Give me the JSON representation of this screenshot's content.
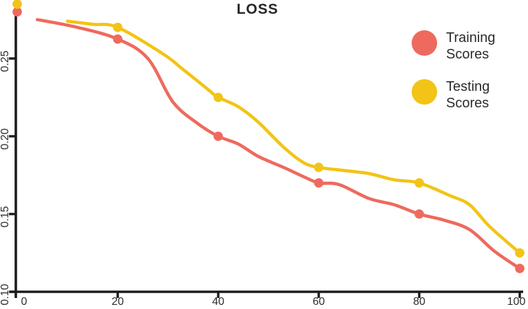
{
  "title": "LOSS",
  "colors": {
    "background": "#ffffff",
    "axis": "#1b1b1b",
    "tick_label": "#2e2e2e",
    "title": "#262626",
    "legend_text": "#2b2b2b",
    "training": "#ee6a5e",
    "testing": "#f2c417"
  },
  "chart_data": {
    "type": "line",
    "title": "LOSS",
    "xlabel": "",
    "ylabel": "",
    "xlim": [
      0,
      100
    ],
    "ylim": [
      0.1,
      0.29
    ],
    "x_ticks": [
      0,
      20,
      40,
      60,
      80,
      100
    ],
    "x_tick_labels": [
      "0",
      "20",
      "40",
      "60",
      "80",
      "100"
    ],
    "y_ticks": [
      0.1,
      0.15,
      0.2,
      0.25
    ],
    "y_tick_labels": [
      "0.10",
      "0.15",
      "0.20",
      "0.25"
    ],
    "grid": false,
    "legend_position": "top-right",
    "legend": [
      {
        "series": "training",
        "label": [
          "Training",
          "Scores"
        ]
      },
      {
        "series": "testing",
        "label": [
          "Testing",
          "Scores"
        ]
      }
    ],
    "series": [
      {
        "id": "training",
        "name": "Training Scores",
        "color": "#ee6a5e",
        "markers": [
          [
            0,
            0.28
          ],
          [
            20,
            0.2625
          ],
          [
            40,
            0.2
          ],
          [
            60,
            0.17
          ],
          [
            80,
            0.15
          ],
          [
            100,
            0.115
          ]
        ],
        "curve": [
          [
            4,
            0.275
          ],
          [
            12,
            0.27
          ],
          [
            20,
            0.2625
          ],
          [
            26,
            0.25
          ],
          [
            31,
            0.222
          ],
          [
            36,
            0.208
          ],
          [
            40,
            0.2
          ],
          [
            44,
            0.195
          ],
          [
            48,
            0.187
          ],
          [
            53,
            0.18
          ],
          [
            57,
            0.174
          ],
          [
            60,
            0.17
          ],
          [
            64,
            0.169
          ],
          [
            70,
            0.16
          ],
          [
            75,
            0.156
          ],
          [
            80,
            0.15
          ],
          [
            85,
            0.146
          ],
          [
            90,
            0.14
          ],
          [
            95,
            0.126
          ],
          [
            100,
            0.115
          ]
        ]
      },
      {
        "id": "testing",
        "name": "Testing Scores",
        "color": "#f2c417",
        "markers": [
          [
            0,
            0.285
          ],
          [
            20,
            0.27
          ],
          [
            40,
            0.225
          ],
          [
            60,
            0.18
          ],
          [
            80,
            0.17
          ],
          [
            100,
            0.125
          ]
        ],
        "curve": [
          [
            10,
            0.274
          ],
          [
            15,
            0.272
          ],
          [
            20,
            0.27
          ],
          [
            29,
            0.253
          ],
          [
            33,
            0.243
          ],
          [
            38,
            0.23
          ],
          [
            40,
            0.225
          ],
          [
            44,
            0.219
          ],
          [
            48,
            0.209
          ],
          [
            53,
            0.193
          ],
          [
            57,
            0.183
          ],
          [
            60,
            0.18
          ],
          [
            65,
            0.178
          ],
          [
            70,
            0.176
          ],
          [
            75,
            0.172
          ],
          [
            80,
            0.17
          ],
          [
            86,
            0.162
          ],
          [
            90,
            0.156
          ],
          [
            94,
            0.142
          ],
          [
            100,
            0.125
          ]
        ]
      }
    ]
  }
}
